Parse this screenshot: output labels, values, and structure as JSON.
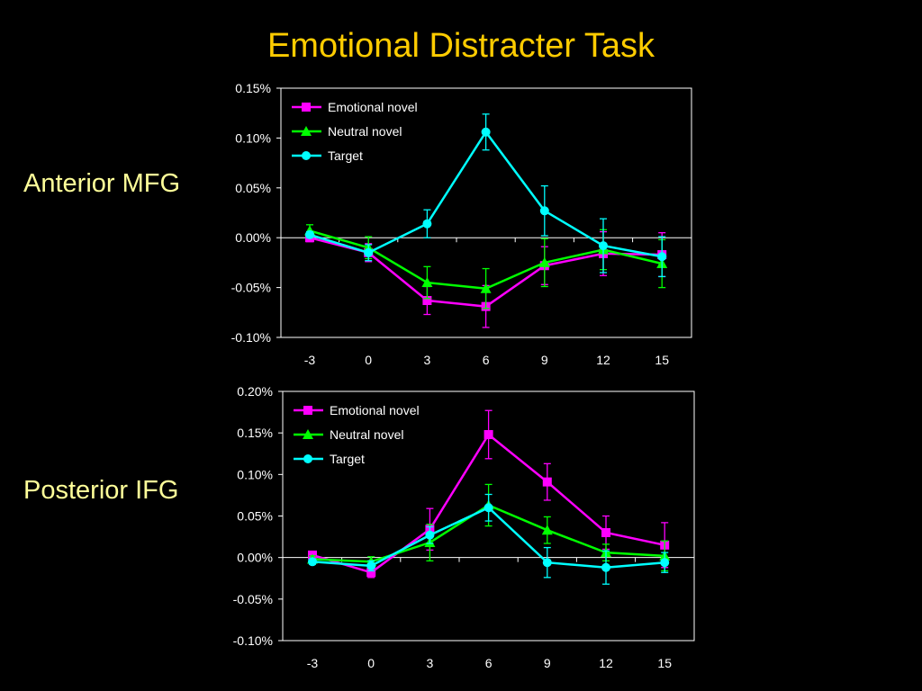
{
  "slide": {
    "title": "Emotional Distracter Task",
    "row_labels": [
      "Anterior MFG",
      "Posterior IFG"
    ]
  },
  "colors": {
    "background": "#000000",
    "title": "#FFCC00",
    "row_label": "#FFFF99",
    "emotional": "#FF00FF",
    "neutral": "#00FF00",
    "target": "#00FFFF"
  },
  "chart_data": [
    {
      "type": "line",
      "region": "Anterior MFG",
      "x": [
        -3,
        0,
        3,
        6,
        9,
        12,
        15
      ],
      "x_tick_labels": [
        "-3",
        "0",
        "3",
        "6",
        "9",
        "12",
        "15"
      ],
      "y_tick_labels": [
        "0.15%",
        "0.10%",
        "0.05%",
        "0.00%",
        "-0.05%",
        "-0.10%"
      ],
      "y_ticks": [
        0.15,
        0.1,
        0.05,
        0.0,
        -0.05,
        -0.1
      ],
      "ylim": [
        -0.1,
        0.15
      ],
      "y_unit": "%",
      "grid": false,
      "legend_position": "top-left",
      "series": [
        {
          "name": "Emotional novel",
          "marker": "square",
          "color": "#FF00FF",
          "values": [
            0.0,
            -0.015,
            -0.063,
            -0.069,
            -0.028,
            -0.016,
            -0.017
          ],
          "error": [
            0.004,
            0.009,
            0.014,
            0.021,
            0.019,
            0.022,
            0.022
          ]
        },
        {
          "name": "Neutral novel",
          "marker": "triangle",
          "color": "#00FF00",
          "values": [
            0.007,
            -0.01,
            -0.045,
            -0.051,
            -0.025,
            -0.012,
            -0.026
          ],
          "error": [
            0.006,
            0.011,
            0.016,
            0.02,
            0.024,
            0.02,
            0.024
          ]
        },
        {
          "name": "Target",
          "marker": "circle",
          "color": "#00FFFF",
          "values": [
            0.003,
            -0.015,
            0.014,
            0.106,
            0.027,
            -0.008,
            -0.019
          ],
          "error": [
            0.003,
            0.008,
            0.014,
            0.018,
            0.025,
            0.027,
            0.02
          ]
        }
      ]
    },
    {
      "type": "line",
      "region": "Posterior IFG",
      "x": [
        -3,
        0,
        3,
        6,
        9,
        12,
        15
      ],
      "x_tick_labels": [
        "-3",
        "0",
        "3",
        "6",
        "9",
        "12",
        "15"
      ],
      "y_tick_labels": [
        "0.20%",
        "0.15%",
        "0.10%",
        "0.05%",
        "0.00%",
        "-0.05%",
        "-0.10%"
      ],
      "y_ticks": [
        0.2,
        0.15,
        0.1,
        0.05,
        0.0,
        -0.05,
        -0.1
      ],
      "ylim": [
        -0.1,
        0.2
      ],
      "y_unit": "%",
      "grid": false,
      "legend_position": "top-left",
      "series": [
        {
          "name": "Emotional novel",
          "marker": "square",
          "color": "#FF00FF",
          "values": [
            0.003,
            -0.018,
            0.034,
            0.148,
            0.091,
            0.03,
            0.015
          ],
          "error": [
            0.004,
            0.006,
            0.025,
            0.029,
            0.022,
            0.02,
            0.027
          ]
        },
        {
          "name": "Neutral novel",
          "marker": "triangle",
          "color": "#00FF00",
          "values": [
            -0.002,
            -0.005,
            0.018,
            0.063,
            0.033,
            0.006,
            0.002
          ],
          "error": [
            0.004,
            0.006,
            0.022,
            0.025,
            0.016,
            0.01,
            0.018
          ]
        },
        {
          "name": "Target",
          "marker": "circle",
          "color": "#00FFFF",
          "values": [
            -0.005,
            -0.01,
            0.027,
            0.06,
            -0.006,
            -0.012,
            -0.006
          ],
          "error": [
            0.003,
            0.006,
            0.01,
            0.016,
            0.018,
            0.02,
            0.012
          ]
        }
      ]
    }
  ]
}
